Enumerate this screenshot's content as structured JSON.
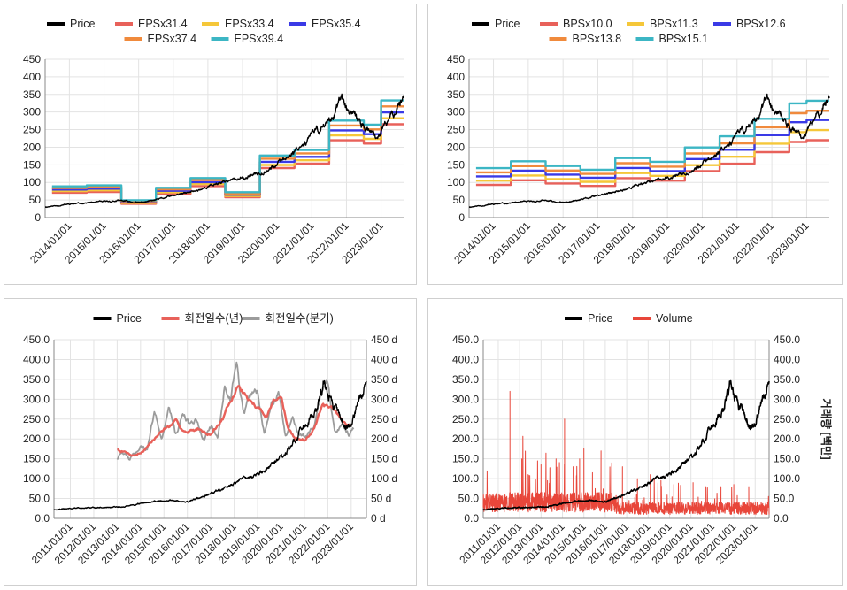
{
  "colors": {
    "price": "#000000",
    "red": "#e8615a",
    "yellow": "#f5c739",
    "blue": "#3a3ae6",
    "orange": "#f08a3c",
    "teal": "#3cb6c4",
    "gray": "#9b9b9b",
    "volume": "#e8463a"
  },
  "chart_data": [
    {
      "id": "eps",
      "type": "line",
      "legend": [
        "Price",
        "EPSx31.4",
        "EPSx33.4",
        "EPSx35.4",
        "EPSx37.4",
        "EPSx39.4"
      ],
      "legend_placement": "top",
      "xlim": [
        2013.3,
        2023.65
      ],
      "ylim": [
        0,
        450
      ],
      "yticks": [
        "0",
        "50",
        "100",
        "150",
        "200",
        "250",
        "300",
        "350",
        "400",
        "450"
      ],
      "xticks": [
        "2014/01/01",
        "2015/01/01",
        "2016/01/01",
        "2017/01/01",
        "2018/01/01",
        "2019/01/01",
        "2020/01/01",
        "2021/01/01",
        "2022/01/01",
        "2023/01/01"
      ],
      "price": {
        "x": [
          2013.3,
          2014.0,
          2014.5,
          2015.0,
          2015.5,
          2016.0,
          2016.5,
          2017.0,
          2017.5,
          2018.0,
          2018.5,
          2019.0,
          2019.5,
          2020.0,
          2020.25,
          2020.5,
          2021.0,
          2021.5,
          2021.85,
          2022.0,
          2022.3,
          2022.6,
          2022.85,
          2023.0,
          2023.3,
          2023.65
        ],
        "y": [
          30,
          38,
          42,
          45,
          48,
          42,
          50,
          62,
          72,
          88,
          105,
          110,
          128,
          150,
          170,
          190,
          235,
          275,
          340,
          305,
          280,
          250,
          225,
          240,
          290,
          345
        ]
      },
      "step_x": [
        2013.5,
        2014.5,
        2015.5,
        2016.5,
        2017.5,
        2018.5,
        2019.5,
        2020.5,
        2021.5,
        2022.5,
        2023.0,
        2023.65
      ],
      "multipliers": [
        31.4,
        33.4,
        35.4,
        37.4,
        39.4
      ],
      "base": [
        2.25,
        2.32,
        1.25,
        2.15,
        2.85,
        1.83,
        4.48,
        4.88,
        7.0,
        6.7,
        8.45
      ]
    },
    {
      "id": "bps",
      "type": "line",
      "legend": [
        "Price",
        "BPSx10.0",
        "BPSx11.3",
        "BPSx12.6",
        "BPSx13.8",
        "BPSx15.1"
      ],
      "legend_placement": "top",
      "xlim": [
        2013.3,
        2023.65
      ],
      "ylim": [
        0,
        450
      ],
      "yticks": [
        "0",
        "50",
        "100",
        "150",
        "200",
        "250",
        "300",
        "350",
        "400",
        "450"
      ],
      "xticks": [
        "2014/01/01",
        "2015/01/01",
        "2016/01/01",
        "2017/01/01",
        "2018/01/01",
        "2019/01/01",
        "2020/01/01",
        "2021/01/01",
        "2022/01/01",
        "2023/01/01"
      ],
      "price": {
        "x": [
          2013.3,
          2014.0,
          2014.5,
          2015.0,
          2015.5,
          2016.0,
          2016.5,
          2017.0,
          2017.5,
          2018.0,
          2018.5,
          2019.0,
          2019.5,
          2020.0,
          2020.25,
          2020.5,
          2021.0,
          2021.5,
          2021.85,
          2022.0,
          2022.3,
          2022.6,
          2022.85,
          2023.0,
          2023.3,
          2023.65
        ],
        "y": [
          30,
          38,
          42,
          45,
          48,
          42,
          50,
          62,
          72,
          88,
          105,
          110,
          128,
          150,
          170,
          190,
          235,
          275,
          340,
          305,
          280,
          250,
          225,
          240,
          290,
          345
        ]
      },
      "step_x": [
        2013.5,
        2014.5,
        2015.5,
        2016.5,
        2017.5,
        2018.5,
        2019.5,
        2020.5,
        2021.5,
        2022.5,
        2023.0,
        2023.65
      ],
      "multipliers": [
        10.0,
        11.3,
        12.6,
        13.8,
        15.1
      ],
      "base": [
        9.3,
        10.6,
        9.7,
        9.0,
        11.2,
        10.5,
        13.2,
        15.3,
        18.6,
        21.5,
        22.0
      ]
    },
    {
      "id": "turnover",
      "type": "line",
      "legend": [
        "Price",
        "회전일수(년)",
        "회전일수(분기)"
      ],
      "legend_placement": "top",
      "xlim": [
        2010.3,
        2023.65
      ],
      "ylim": [
        0,
        450
      ],
      "yticks": [
        "0.0",
        "50.0",
        "100.0",
        "150.0",
        "200.0",
        "250.0",
        "300.0",
        "350.0",
        "400.0",
        "450.0"
      ],
      "y2ticks": [
        "0 d",
        "50 d",
        "100 d",
        "150 d",
        "200 d",
        "250 d",
        "300 d",
        "350 d",
        "400 d",
        "450 d"
      ],
      "xticks": [
        "2011/01/01",
        "2012/01/01",
        "2013/01/01",
        "2014/01/01",
        "2015/01/01",
        "2016/01/01",
        "2017/01/01",
        "2018/01/01",
        "2019/01/01",
        "2020/01/01",
        "2021/01/01",
        "2022/01/01",
        "2023/01/01"
      ],
      "price": {
        "x": [
          2010.3,
          2011.0,
          2012.0,
          2013.0,
          2013.5,
          2014.0,
          2015.0,
          2016.0,
          2016.5,
          2017.0,
          2017.5,
          2018.0,
          2018.5,
          2019.0,
          2019.5,
          2020.0,
          2020.5,
          2021.0,
          2021.5,
          2021.85,
          2022.1,
          2022.5,
          2022.85,
          2023.0,
          2023.3,
          2023.65
        ],
        "y": [
          22,
          25,
          27,
          28,
          32,
          38,
          45,
          42,
          50,
          62,
          72,
          88,
          105,
          110,
          128,
          150,
          190,
          235,
          275,
          345,
          300,
          260,
          228,
          240,
          290,
          342
        ]
      },
      "annual": {
        "x": [
          2013.0,
          2013.3,
          2013.7,
          2014.0,
          2014.5,
          2015.0,
          2015.5,
          2016.0,
          2016.5,
          2017.0,
          2017.5,
          2017.85,
          2018.2,
          2018.6,
          2019.0,
          2019.4,
          2019.7,
          2020.0,
          2020.3,
          2020.6,
          2021.0,
          2021.4,
          2021.8,
          2022.2,
          2022.6,
          2023.0
        ],
        "y": [
          175,
          168,
          160,
          165,
          195,
          225,
          240,
          215,
          225,
          215,
          250,
          290,
          335,
          300,
          275,
          260,
          300,
          310,
          225,
          200,
          195,
          230,
          285,
          270,
          245,
          235
        ]
      },
      "quarter": {
        "x": [
          2013.0,
          2013.2,
          2013.5,
          2013.8,
          2014.0,
          2014.3,
          2014.6,
          2014.9,
          2015.2,
          2015.5,
          2015.8,
          2016.1,
          2016.4,
          2016.7,
          2017.0,
          2017.3,
          2017.6,
          2017.85,
          2018.1,
          2018.4,
          2018.7,
          2019.0,
          2019.3,
          2019.6,
          2019.9,
          2020.2,
          2020.5,
          2020.8,
          2021.1,
          2021.4,
          2021.7,
          2022.0,
          2022.3,
          2022.6,
          2022.9,
          2023.1
        ],
        "y": [
          150,
          175,
          145,
          165,
          190,
          180,
          270,
          200,
          290,
          210,
          265,
          235,
          245,
          200,
          230,
          210,
          340,
          300,
          405,
          260,
          300,
          320,
          210,
          300,
          310,
          200,
          250,
          205,
          200,
          225,
          310,
          330,
          210,
          240,
          215,
          225
        ]
      }
    },
    {
      "id": "volume",
      "type": "line",
      "legend": [
        "Price",
        "Volume"
      ],
      "legend_placement": "top",
      "xlim": [
        2010.3,
        2023.65
      ],
      "ylim": [
        0,
        450
      ],
      "yticks": [
        "0.0",
        "50.0",
        "100.0",
        "150.0",
        "200.0",
        "250.0",
        "300.0",
        "350.0",
        "400.0",
        "450.0"
      ],
      "y2ticks": [
        "0.0",
        "50.0",
        "100.0",
        "150.0",
        "200.0",
        "250.0",
        "300.0",
        "350.0",
        "400.0",
        "450.0"
      ],
      "y2label": "거래량 [백만]",
      "xticks": [
        "2011/01/01",
        "2012/01/01",
        "2013/01/01",
        "2014/01/01",
        "2015/01/01",
        "2016/01/01",
        "2017/01/01",
        "2018/01/01",
        "2019/01/01",
        "2020/01/01",
        "2021/01/01",
        "2022/01/01",
        "2023/01/01"
      ],
      "price": {
        "x": [
          2010.3,
          2011.0,
          2012.0,
          2013.0,
          2013.5,
          2014.0,
          2015.0,
          2016.0,
          2016.5,
          2017.0,
          2017.5,
          2018.0,
          2018.5,
          2019.0,
          2019.5,
          2020.0,
          2020.5,
          2021.0,
          2021.5,
          2021.85,
          2022.1,
          2022.5,
          2022.85,
          2023.0,
          2023.3,
          2023.65
        ],
        "y": [
          22,
          25,
          27,
          28,
          32,
          38,
          45,
          42,
          50,
          62,
          72,
          88,
          105,
          110,
          128,
          150,
          190,
          235,
          275,
          345,
          300,
          260,
          228,
          240,
          290,
          342
        ]
      },
      "volume_spikes": {
        "x": [
          2011.55,
          2012.1,
          2012.4,
          2013.0,
          2013.3,
          2013.7,
          2014.1,
          2014.5,
          2014.8,
          2015.0,
          2015.4,
          2015.8,
          2016.3,
          2016.8,
          2017.5,
          2018.1,
          2018.6,
          2019.2,
          2020.1,
          2020.7,
          2021.4,
          2022.0,
          2022.7
        ],
        "y": [
          320,
          150,
          110,
          135,
          95,
          150,
          250,
          130,
          150,
          175,
          115,
          170,
          140,
          130,
          100,
          110,
          95,
          85,
          90,
          80,
          80,
          85,
          80
        ]
      }
    }
  ]
}
